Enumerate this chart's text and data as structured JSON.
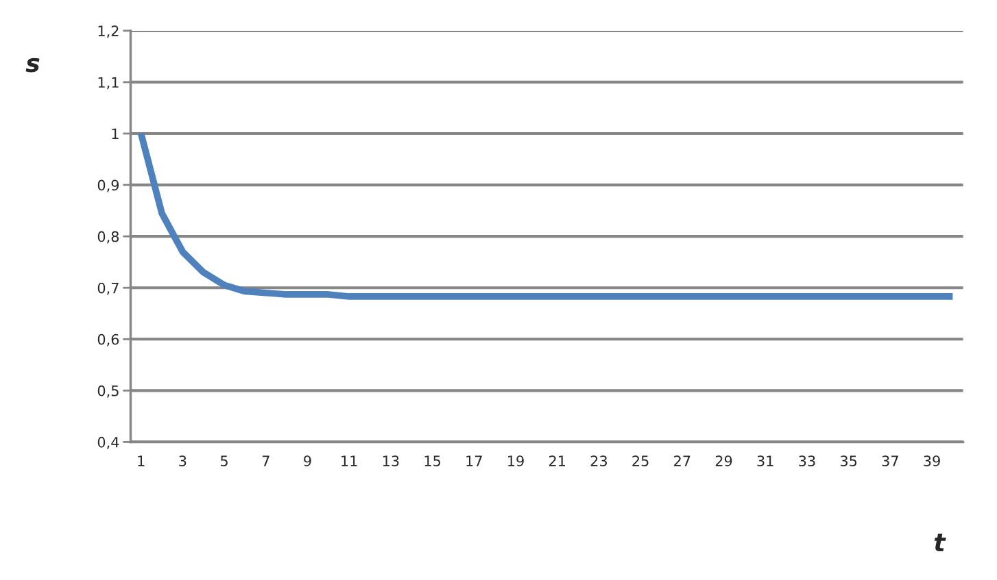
{
  "chart_data": {
    "type": "line",
    "xlabel": "t",
    "ylabel": "s",
    "categories": [
      "1",
      null,
      "3",
      null,
      "5",
      null,
      "7",
      null,
      "9",
      null,
      "11",
      null,
      "13",
      null,
      "15",
      null,
      "17",
      null,
      "19",
      null,
      "21",
      null,
      "23",
      null,
      "25",
      null,
      "27",
      null,
      "29",
      null,
      "31",
      null,
      "33",
      null,
      "35",
      null,
      "37",
      null,
      "39",
      null
    ],
    "series": [
      {
        "color": "#4f81bd",
        "values": [
          1.0,
          0.845,
          0.77,
          0.73,
          0.705,
          0.693,
          0.69,
          0.687,
          0.687,
          0.687,
          0.683,
          0.683,
          0.683,
          0.683,
          0.683,
          0.683,
          0.683,
          0.683,
          0.683,
          0.683,
          0.683,
          0.683,
          0.683,
          0.683,
          0.683,
          0.683,
          0.683,
          0.683,
          0.683,
          0.683,
          0.683,
          0.683,
          0.683,
          0.683,
          0.683,
          0.683,
          0.683,
          0.683,
          0.683,
          0.683
        ]
      }
    ],
    "ylim": [
      0.4,
      1.2
    ],
    "yticks": [
      {
        "value": 0.4,
        "label": "0,4"
      },
      {
        "value": 0.5,
        "label": "0,5"
      },
      {
        "value": 0.6,
        "label": "0,6"
      },
      {
        "value": 0.7,
        "label": "0,7"
      },
      {
        "value": 0.8,
        "label": "0,8"
      },
      {
        "value": 0.9,
        "label": "0,9"
      },
      {
        "value": 1.0,
        "label": "1"
      },
      {
        "value": 1.1,
        "label": "1,1"
      },
      {
        "value": 1.2,
        "label": "1,2"
      }
    ],
    "grid": "y",
    "legend": false,
    "marker": "none",
    "line_style": "solid"
  }
}
